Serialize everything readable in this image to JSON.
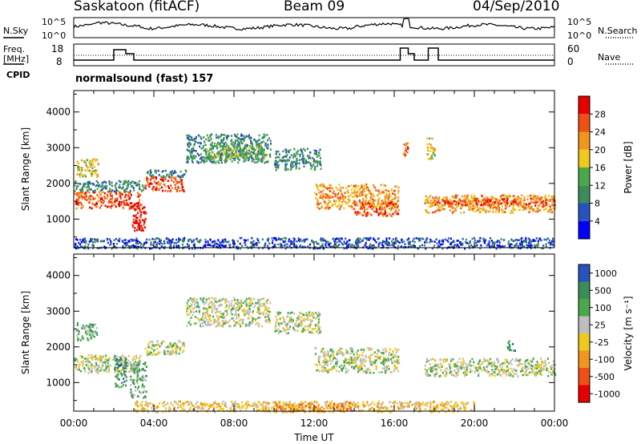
{
  "header": {
    "station": "Saskatoon (fitACF)",
    "beam": "Beam 09",
    "date": "04/Sep/2010"
  },
  "noise_panel": {
    "left_label": "N.Sky",
    "right_label": "N.Search",
    "left_ticks": [
      "10^5",
      "10^0"
    ],
    "right_ticks": [
      "10^5",
      "10^0"
    ]
  },
  "freq_panel": {
    "left_label_1": "Freq.",
    "left_label_2": "[MHz]",
    "right_label": "Nave",
    "left_ticks": [
      "18",
      "8"
    ],
    "right_ticks": [
      "60",
      "0"
    ]
  },
  "cpid": {
    "label": "CPID",
    "program": "normalsound (fast) 157"
  },
  "colors": {
    "power": [
      "#0000ff",
      "#2a52be",
      "#3c8c5a",
      "#4aa84a",
      "#f0c81e",
      "#f0961e",
      "#f05014",
      "#e60000"
    ],
    "velocity": [
      "#e60000",
      "#f05014",
      "#f0961e",
      "#f0c81e",
      "#bebebe",
      "#4aa84a",
      "#3c8c5a",
      "#2a52be"
    ]
  },
  "chart_data": [
    {
      "type": "heatmap",
      "name": "power",
      "xlabel": "",
      "ylabel": "Slant Range [km]",
      "yticks": [
        "4000",
        "3000",
        "2000",
        "1000"
      ],
      "ylim": [
        200,
        4600
      ],
      "xlim": [
        0,
        24
      ],
      "colorbar_label": "Power [dB]",
      "colorbar_ticks": [
        "28",
        "24",
        "20",
        "16",
        "12",
        "8",
        "4"
      ],
      "regions": [
        {
          "t0": 0.0,
          "t1": 3.3,
          "r0": 1300,
          "r1": 1800,
          "c": 6
        },
        {
          "t0": 0.1,
          "t1": 1.2,
          "r0": 2200,
          "r1": 2700,
          "c": 4
        },
        {
          "t0": 0.0,
          "t1": 3.5,
          "r0": 1800,
          "r1": 2100,
          "c": 2
        },
        {
          "t0": 2.9,
          "t1": 3.6,
          "r0": 700,
          "r1": 1500,
          "c": 7
        },
        {
          "t0": 3.5,
          "t1": 5.5,
          "r0": 1800,
          "r1": 2200,
          "c": 6
        },
        {
          "t0": 3.6,
          "t1": 5.6,
          "r0": 2200,
          "r1": 2400,
          "c": 2
        },
        {
          "t0": 5.6,
          "t1": 9.8,
          "r0": 2600,
          "r1": 3400,
          "c": 2
        },
        {
          "t0": 6.5,
          "t1": 9.5,
          "r0": 2700,
          "r1": 3100,
          "c": 3
        },
        {
          "t0": 10.0,
          "t1": 12.3,
          "r0": 2400,
          "r1": 3000,
          "c": 2
        },
        {
          "t0": 12.0,
          "t1": 16.2,
          "r0": 1300,
          "r1": 2000,
          "c": 5
        },
        {
          "t0": 14.0,
          "t1": 16.2,
          "r0": 1100,
          "r1": 1500,
          "c": 6
        },
        {
          "t0": 17.5,
          "t1": 24.0,
          "r0": 1200,
          "r1": 1700,
          "c": 5
        },
        {
          "t0": 18.0,
          "t1": 24.0,
          "r0": 1400,
          "r1": 1600,
          "c": 6
        },
        {
          "t0": 0.0,
          "t1": 24.0,
          "r0": 200,
          "r1": 500,
          "c": 1
        },
        {
          "t0": 16.4,
          "t1": 16.7,
          "r0": 2800,
          "r1": 3200,
          "c": 6
        },
        {
          "t0": 17.6,
          "t1": 18.0,
          "r0": 2700,
          "r1": 3300,
          "c": 4
        }
      ]
    },
    {
      "type": "heatmap",
      "name": "velocity",
      "xlabel": "Time UT",
      "ylabel": "Slant Range [km]",
      "yticks": [
        "4000",
        "3000",
        "2000",
        "1000"
      ],
      "ylim": [
        200,
        4600
      ],
      "xlim": [
        0,
        24
      ],
      "xticks": [
        "00:00",
        "04:00",
        "08:00",
        "12:00",
        "16:00",
        "20:00",
        "00:00"
      ],
      "colorbar_label": "Velocity [m s⁻¹]",
      "colorbar_ticks": [
        "1000",
        "500",
        "100",
        "25",
        "-25",
        "-100",
        "-500",
        "-1000"
      ],
      "regions": [
        {
          "t0": 0.0,
          "t1": 3.3,
          "r0": 1300,
          "r1": 1800,
          "c": 4
        },
        {
          "t0": 0.1,
          "t1": 1.2,
          "r0": 2200,
          "r1": 2700,
          "c": 5
        },
        {
          "t0": 2.0,
          "t1": 2.6,
          "r0": 900,
          "r1": 1700,
          "c": 6
        },
        {
          "t0": 2.8,
          "t1": 3.6,
          "r0": 600,
          "r1": 1600,
          "c": 5
        },
        {
          "t0": 3.5,
          "t1": 5.5,
          "r0": 1800,
          "r1": 2200,
          "c": 4
        },
        {
          "t0": 5.6,
          "t1": 9.8,
          "r0": 2600,
          "r1": 3400,
          "c": 4
        },
        {
          "t0": 10.0,
          "t1": 12.3,
          "r0": 2400,
          "r1": 3000,
          "c": 4
        },
        {
          "t0": 12.0,
          "t1": 16.2,
          "r0": 1300,
          "r1": 2000,
          "c": 4
        },
        {
          "t0": 17.5,
          "t1": 24.0,
          "r0": 1200,
          "r1": 1700,
          "c": 4
        },
        {
          "t0": 21.6,
          "t1": 22.0,
          "r0": 1900,
          "r1": 2200,
          "c": 6
        },
        {
          "t0": 3.0,
          "t1": 20.0,
          "r0": 200,
          "r1": 500,
          "c": 3
        },
        {
          "t0": 10.0,
          "t1": 14.0,
          "r0": 200,
          "r1": 450,
          "c": 2
        }
      ]
    }
  ]
}
